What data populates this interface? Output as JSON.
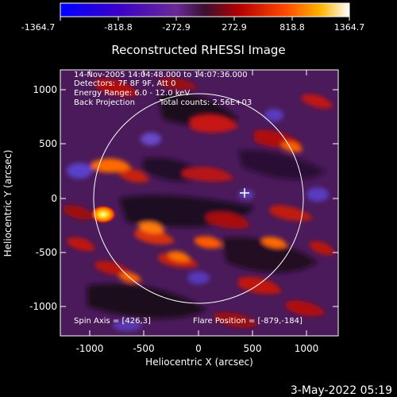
{
  "colorbar": {
    "ticks": [
      "-1364.7",
      "-818.8",
      "-272.9",
      "272.9",
      "818.8",
      "1364.7"
    ]
  },
  "title": "Reconstructed RHESSI Image",
  "info": {
    "time_range": "14-Nov-2005 14:04:48.000 to 14:07:36.000",
    "detectors": "Detectors: 7F 8F 9F, Att 0",
    "energy": "Energy Range: 6.0 - 12.0 keV",
    "method": "Back Projection",
    "counts": "Total counts: 2.56E+03"
  },
  "spin_axis": "Spin Axis = [426,3]",
  "flare_position": "Flare Position = [-879,-184]",
  "axes": {
    "xlabel": "Heliocentric X (arcsec)",
    "ylabel": "Heliocentric Y (arcsec)",
    "xticks": [
      "-1000",
      "-500",
      "0",
      "500",
      "1000"
    ],
    "yticks": [
      "1000",
      "500",
      "0",
      "-500",
      "-1000"
    ]
  },
  "footer_date": "3-May-2022 05:19"
}
